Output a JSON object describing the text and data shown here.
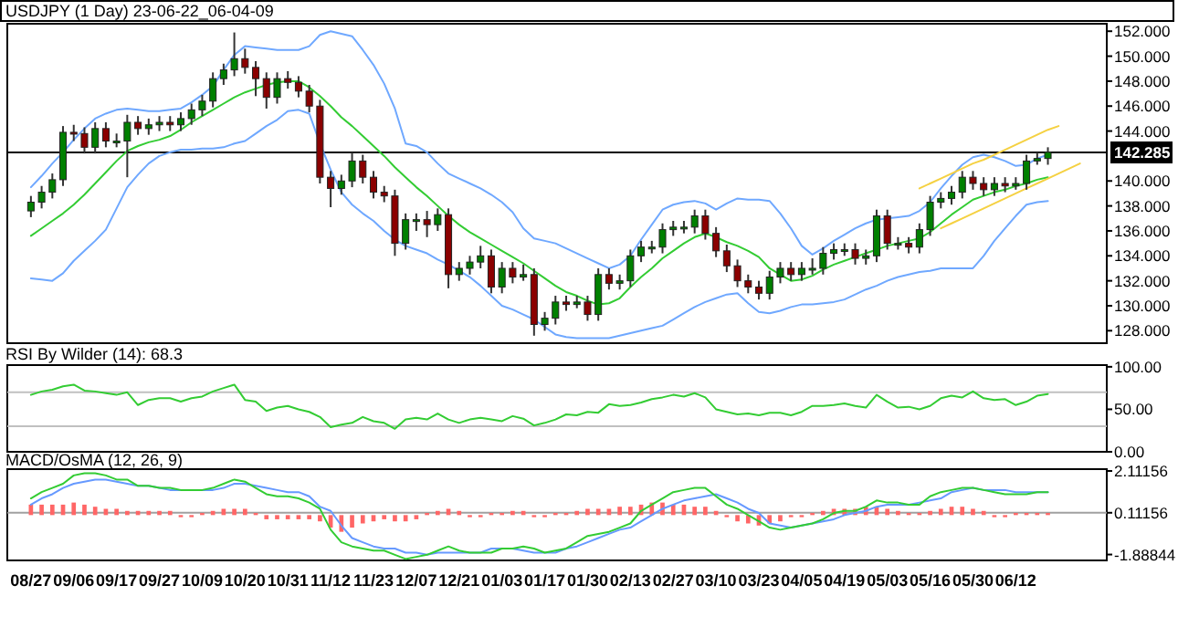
{
  "chart_data": [
    {
      "type": "candlestick",
      "title": "USDJPY (1 Day) 23-06-22_06-04-09",
      "series": [
        {
          "type": "line",
          "color": "#6fa8ff",
          "values": [
            139.5,
            140.4,
            141.4,
            142.3,
            143.3,
            144.2,
            145.0,
            145.4,
            145.7,
            145.8,
            145.7,
            145.6,
            145.6,
            145.7,
            145.8,
            146.3,
            146.9,
            147.6,
            148.9,
            150.1,
            150.8,
            150.7,
            150.6,
            150.5,
            150.5,
            150.5,
            150.8,
            151.7,
            152.0,
            151.8,
            151.6,
            150.5,
            149.3,
            147.8,
            145.8,
            143.0,
            142.8,
            142.3,
            141.4,
            140.6,
            140.2,
            139.8,
            139.4,
            138.9,
            138.3,
            137.5,
            136.2,
            135.4,
            135.2,
            135.0,
            134.6,
            134.2,
            133.8,
            133.4,
            133.0,
            133.3,
            134.0,
            135.3,
            136.5,
            137.7,
            138.1,
            138.3,
            138.4,
            138.2,
            137.7,
            138.2,
            138.6,
            138.5,
            138.5,
            138.4,
            137.4,
            136.2,
            134.8,
            134.1,
            134.6,
            135.2,
            135.7,
            136.2,
            136.6,
            136.9,
            137.0,
            137.1,
            137.2,
            137.6,
            138.3,
            139.4,
            140.4,
            141.3,
            141.9,
            142.1,
            141.9,
            141.6,
            141.2,
            141.3,
            141.8,
            142.1,
            null,
            null,
            null,
            null,
            null
          ]
        },
        {
          "type": "line",
          "color": "#33cc33",
          "values": [
            135.6,
            136.2,
            136.8,
            137.4,
            138.1,
            138.9,
            139.8,
            140.7,
            141.6,
            142.4,
            142.8,
            143.1,
            143.3,
            143.6,
            144.1,
            144.7,
            145.2,
            145.7,
            146.2,
            146.7,
            147.1,
            147.4,
            147.7,
            147.9,
            148.0,
            148.0,
            147.5,
            146.8,
            146.0,
            145.1,
            144.4,
            143.6,
            142.8,
            142.0,
            141.1,
            140.3,
            139.5,
            138.8,
            138.0,
            137.2,
            136.5,
            135.9,
            135.4,
            134.9,
            134.4,
            133.9,
            133.4,
            132.8,
            132.2,
            131.6,
            131.1,
            130.8,
            130.4,
            130.1,
            130.2,
            130.6,
            131.5,
            132.3,
            133.0,
            133.8,
            134.4,
            135.0,
            135.5,
            135.8,
            135.5,
            135.1,
            134.8,
            134.4,
            133.9,
            133.0,
            132.5,
            132.0,
            132.1,
            132.4,
            132.9,
            133.3,
            133.6,
            133.9,
            134.2,
            134.5,
            134.8,
            135.0,
            135.2,
            135.4,
            135.9,
            136.6,
            137.3,
            137.9,
            138.5,
            138.8,
            139.1,
            139.3,
            139.6,
            139.8,
            140.1,
            140.3,
            null,
            null,
            null,
            null,
            null
          ]
        },
        {
          "type": "line",
          "color": "#6fa8ff",
          "values": [
            132.2,
            132.1,
            132.0,
            132.6,
            133.6,
            134.4,
            135.2,
            136.1,
            137.8,
            139.5,
            140.5,
            141.4,
            142.0,
            142.3,
            142.5,
            142.5,
            142.6,
            142.6,
            142.7,
            143.0,
            143.2,
            143.8,
            144.4,
            144.9,
            145.6,
            145.7,
            145.4,
            143.0,
            140.9,
            139.1,
            138.1,
            137.4,
            136.8,
            136.0,
            135.3,
            134.8,
            134.5,
            134.2,
            133.7,
            133.3,
            132.8,
            132.3,
            131.6,
            130.8,
            130.0,
            129.7,
            129.3,
            128.9,
            128.3,
            127.7,
            127.5,
            127.4,
            127.4,
            127.4,
            127.4,
            127.6,
            127.8,
            128.0,
            128.2,
            128.4,
            128.9,
            129.4,
            129.9,
            130.3,
            130.6,
            130.9,
            131.0,
            130.2,
            129.5,
            129.4,
            129.6,
            129.9,
            130.1,
            130.1,
            130.2,
            130.3,
            130.5,
            130.9,
            131.3,
            131.6,
            132.0,
            132.3,
            132.5,
            132.7,
            132.8,
            133.0,
            133.0,
            133.0,
            133.0,
            134.0,
            135.2,
            136.2,
            137.2,
            138.1,
            138.3,
            138.4,
            null,
            null,
            null,
            null,
            null
          ]
        },
        {
          "type": "line",
          "color": "#f5d142",
          "values": [
            null,
            null,
            null,
            null,
            null,
            null,
            null,
            null,
            null,
            null,
            null,
            null,
            null,
            null,
            null,
            null,
            null,
            null,
            null,
            null,
            null,
            null,
            null,
            null,
            null,
            null,
            null,
            null,
            null,
            null,
            null,
            null,
            null,
            null,
            null,
            null,
            null,
            null,
            null,
            null,
            null,
            null,
            null,
            null,
            null,
            null,
            null,
            null,
            null,
            null,
            null,
            null,
            null,
            null,
            null,
            null,
            null,
            null,
            null,
            null,
            null,
            null,
            null,
            null,
            null,
            null,
            null,
            null,
            null,
            null,
            null,
            null,
            null,
            null,
            null,
            null,
            null,
            null,
            null,
            null,
            null,
            null,
            null,
            139.4,
            139.8,
            140.2,
            140.6,
            141.0,
            141.4,
            141.7,
            142.1,
            142.5,
            142.9,
            143.3,
            143.7,
            144.1,
            144.4,
            null,
            null,
            null,
            null
          ]
        },
        {
          "type": "line",
          "color": "#f5d142",
          "values": [
            null,
            null,
            null,
            null,
            null,
            null,
            null,
            null,
            null,
            null,
            null,
            null,
            null,
            null,
            null,
            null,
            null,
            null,
            null,
            null,
            null,
            null,
            null,
            null,
            null,
            null,
            null,
            null,
            null,
            null,
            null,
            null,
            null,
            null,
            null,
            null,
            null,
            null,
            null,
            null,
            null,
            null,
            null,
            null,
            null,
            null,
            null,
            null,
            null,
            null,
            null,
            null,
            null,
            null,
            null,
            null,
            null,
            null,
            null,
            null,
            null,
            null,
            null,
            null,
            null,
            null,
            null,
            null,
            null,
            null,
            null,
            null,
            null,
            null,
            null,
            null,
            null,
            null,
            null,
            null,
            null,
            null,
            null,
            null,
            null,
            136.2,
            136.6,
            137.0,
            137.4,
            137.8,
            138.2,
            138.6,
            139.0,
            139.4,
            139.8,
            140.2,
            140.6,
            141.0,
            141.4,
            null,
            null
          ]
        },
        {
          "ohlc": [
            [
              137.6,
              138.8,
              137.1,
              138.3
            ],
            [
              138.3,
              139.6,
              137.8,
              139.1
            ],
            [
              139.1,
              140.6,
              138.6,
              140.1
            ],
            [
              140.1,
              144.4,
              139.6,
              143.9
            ],
            [
              143.9,
              144.5,
              143.2,
              143.8
            ],
            [
              143.8,
              144.3,
              142.2,
              142.7
            ],
            [
              142.7,
              144.7,
              142.2,
              144.2
            ],
            [
              144.2,
              144.7,
              142.7,
              143.2
            ],
            [
              143.2,
              143.8,
              142.7,
              143.2
            ],
            [
              143.2,
              145.3,
              140.3,
              144.7
            ],
            [
              144.7,
              145.2,
              143.7,
              144.2
            ],
            [
              144.2,
              145.0,
              143.7,
              144.5
            ],
            [
              144.5,
              145.2,
              144.0,
              144.7
            ],
            [
              144.7,
              145.2,
              144.0,
              144.5
            ],
            [
              144.5,
              145.5,
              144.0,
              145.0
            ],
            [
              145.0,
              146.2,
              144.5,
              145.7
            ],
            [
              145.7,
              146.9,
              145.2,
              146.4
            ],
            [
              146.4,
              148.7,
              145.9,
              148.2
            ],
            [
              148.2,
              149.4,
              147.7,
              148.9
            ],
            [
              148.9,
              151.9,
              148.4,
              149.8
            ],
            [
              149.8,
              150.6,
              148.6,
              149.1
            ],
            [
              149.1,
              149.6,
              146.8,
              148.2
            ],
            [
              148.2,
              148.7,
              145.8,
              146.7
            ],
            [
              146.7,
              148.7,
              146.2,
              148.2
            ],
            [
              148.2,
              148.8,
              147.4,
              147.9
            ],
            [
              147.9,
              148.4,
              146.7,
              147.2
            ],
            [
              147.2,
              147.7,
              145.5,
              146.0
            ],
            [
              146.0,
              146.5,
              139.8,
              140.3
            ],
            [
              140.3,
              140.8,
              137.9,
              139.4
            ],
            [
              139.4,
              140.5,
              138.9,
              140.0
            ],
            [
              140.0,
              142.3,
              139.5,
              141.6
            ],
            [
              141.6,
              142.1,
              139.8,
              140.3
            ],
            [
              140.3,
              140.8,
              138.6,
              139.1
            ],
            [
              139.1,
              139.6,
              138.3,
              138.8
            ],
            [
              138.8,
              139.3,
              134.0,
              135.0
            ],
            [
              135.0,
              137.4,
              134.5,
              136.9
            ],
            [
              136.9,
              137.4,
              136.0,
              136.9
            ],
            [
              136.9,
              137.6,
              135.5,
              136.5
            ],
            [
              136.5,
              137.8,
              136.0,
              137.3
            ],
            [
              137.3,
              137.8,
              131.4,
              132.5
            ],
            [
              132.5,
              133.5,
              132.0,
              133.0
            ],
            [
              133.0,
              134.0,
              132.5,
              133.5
            ],
            [
              133.5,
              134.8,
              133.0,
              134.0
            ],
            [
              134.0,
              134.5,
              131.0,
              131.5
            ],
            [
              131.5,
              133.5,
              131.0,
              133.0
            ],
            [
              133.0,
              133.5,
              131.8,
              132.3
            ],
            [
              132.3,
              133.3,
              132.0,
              132.5
            ],
            [
              132.5,
              133.0,
              127.6,
              128.5
            ],
            [
              128.5,
              129.5,
              128.0,
              129.0
            ],
            [
              129.0,
              130.8,
              128.5,
              130.3
            ],
            [
              130.3,
              130.8,
              129.6,
              130.1
            ],
            [
              130.1,
              130.8,
              129.8,
              130.3
            ],
            [
              130.3,
              130.8,
              128.8,
              129.3
            ],
            [
              129.3,
              133.0,
              128.8,
              132.5
            ],
            [
              132.5,
              133.0,
              131.3,
              131.8
            ],
            [
              131.8,
              132.5,
              131.3,
              132.0
            ],
            [
              132.0,
              134.5,
              131.5,
              134.0
            ],
            [
              134.0,
              135.2,
              133.5,
              134.7
            ],
            [
              134.7,
              135.2,
              134.2,
              134.7
            ],
            [
              134.7,
              136.6,
              134.2,
              136.1
            ],
            [
              136.1,
              136.8,
              135.6,
              136.3
            ],
            [
              136.3,
              136.8,
              135.8,
              136.3
            ],
            [
              136.3,
              137.7,
              135.8,
              137.2
            ],
            [
              137.2,
              137.7,
              135.3,
              135.8
            ],
            [
              135.8,
              136.3,
              133.9,
              134.4
            ],
            [
              134.4,
              134.9,
              132.7,
              133.2
            ],
            [
              133.2,
              133.7,
              131.5,
              132.0
            ],
            [
              132.0,
              132.5,
              131.0,
              131.5
            ],
            [
              131.5,
              132.0,
              130.5,
              131.0
            ],
            [
              131.0,
              132.8,
              130.5,
              132.3
            ],
            [
              132.3,
              133.5,
              131.8,
              133.0
            ],
            [
              133.0,
              133.5,
              132.0,
              132.5
            ],
            [
              132.5,
              133.5,
              132.0,
              133.0
            ],
            [
              133.0,
              133.8,
              132.5,
              133.0
            ],
            [
              133.0,
              134.7,
              132.5,
              134.2
            ],
            [
              134.2,
              135.0,
              133.7,
              134.5
            ],
            [
              134.5,
              135.0,
              134.0,
              134.5
            ],
            [
              134.5,
              135.0,
              133.3,
              133.8
            ],
            [
              133.8,
              134.5,
              133.3,
              134.0
            ],
            [
              134.0,
              137.7,
              133.5,
              137.2
            ],
            [
              137.2,
              137.7,
              134.5,
              135.0
            ],
            [
              135.0,
              135.5,
              134.5,
              135.0
            ],
            [
              135.0,
              135.5,
              134.2,
              134.7
            ],
            [
              134.7,
              136.6,
              134.2,
              136.1
            ],
            [
              136.1,
              138.8,
              135.6,
              138.3
            ],
            [
              138.3,
              139.1,
              137.8,
              138.6
            ],
            [
              138.6,
              139.6,
              138.1,
              139.1
            ],
            [
              139.1,
              140.8,
              138.6,
              140.3
            ],
            [
              140.3,
              140.8,
              139.3,
              139.8
            ],
            [
              139.8,
              140.3,
              138.8,
              139.3
            ],
            [
              139.3,
              140.3,
              138.8,
              139.8
            ],
            [
              139.8,
              140.3,
              139.1,
              139.6
            ],
            [
              139.6,
              140.3,
              139.3,
              139.8
            ],
            [
              139.8,
              142.1,
              139.3,
              141.6
            ],
            [
              141.6,
              142.3,
              141.3,
              141.8
            ],
            [
              141.8,
              142.7,
              141.3,
              142.3
            ],
            null,
            null,
            null,
            null,
            null
          ]
        }
      ],
      "ylim": [
        127.0,
        152.6
      ],
      "yticks": [
        {
          "value": 128,
          "label": "128.000"
        },
        {
          "value": 130,
          "label": "130.000"
        },
        {
          "value": 132,
          "label": "132.000"
        },
        {
          "value": 134,
          "label": "134.000"
        },
        {
          "value": 136,
          "label": "136.000"
        },
        {
          "value": 138,
          "label": "138.000"
        },
        {
          "value": 140,
          "label": "140.000"
        },
        {
          "value": 144,
          "label": "144.000"
        },
        {
          "value": 146,
          "label": "146.000"
        },
        {
          "value": 148,
          "label": "148.000"
        },
        {
          "value": 150,
          "label": "150.000"
        },
        {
          "value": 152,
          "label": "152.000"
        }
      ],
      "ref_lines": [
        {
          "axis": "y",
          "value": 142.285,
          "label": "142.285",
          "color": "#000000"
        }
      ],
      "tick_labels": "y"
    },
    {
      "type": "line",
      "title": "RSI By Wilder (14): 68.3",
      "series": [
        {
          "color": "#33cc33",
          "values": [
            67,
            71,
            73,
            77,
            79,
            72,
            71,
            69,
            67,
            70,
            55,
            61,
            63,
            63,
            59,
            63,
            65,
            71,
            75,
            79,
            61,
            59,
            48,
            52,
            54,
            50,
            47,
            41,
            29,
            32,
            34,
            41,
            36,
            34,
            27,
            38,
            40,
            38,
            45,
            38,
            34,
            38,
            40,
            38,
            36,
            42,
            39,
            31,
            34,
            38,
            44,
            43,
            47,
            46,
            56,
            54,
            55,
            58,
            62,
            64,
            67,
            65,
            69,
            64,
            50,
            47,
            44,
            45,
            43,
            46,
            46,
            43,
            47,
            54,
            54,
            55,
            57,
            54,
            52,
            67,
            59,
            52,
            53,
            50,
            54,
            63,
            66,
            64,
            71,
            63,
            61,
            62,
            55,
            59,
            66,
            68,
            null,
            null,
            null,
            null,
            null
          ]
        }
      ],
      "ylim": [
        0,
        102
      ],
      "yticks": [
        {
          "value": 0,
          "label": "0.00"
        },
        {
          "value": 50,
          "label": "50.00"
        },
        {
          "value": 100,
          "label": "100.00"
        }
      ],
      "ref_lines": [
        {
          "axis": "y",
          "value": 30,
          "color": "#c0c0c0"
        },
        {
          "axis": "y",
          "value": 70,
          "color": "#c0c0c0"
        }
      ],
      "tick_labels": "y"
    },
    {
      "type": "line",
      "title": "MACD/OsMA (12, 26, 9)",
      "categories": [
        "08/27",
        null,
        null,
        null,
        "09/06",
        null,
        null,
        null,
        "09/17",
        null,
        null,
        null,
        "09/27",
        null,
        null,
        null,
        "10/09",
        null,
        null,
        null,
        "10/20",
        null,
        null,
        null,
        "10/31",
        null,
        null,
        null,
        "11/12",
        null,
        null,
        null,
        "11/23",
        null,
        null,
        null,
        "12/07",
        null,
        null,
        null,
        "12/21",
        null,
        null,
        null,
        "01/03",
        null,
        null,
        null,
        "01/17",
        null,
        null,
        null,
        "01/30",
        null,
        null,
        null,
        "02/13",
        null,
        null,
        null,
        "02/27",
        null,
        null,
        null,
        "03/10",
        null,
        null,
        null,
        "03/23",
        null,
        null,
        null,
        "04/05",
        null,
        null,
        null,
        "04/19",
        null,
        null,
        null,
        "05/03",
        null,
        null,
        null,
        "05/16",
        null,
        null,
        null,
        "05/30",
        null,
        null,
        null,
        "06/12",
        null,
        null,
        null,
        null,
        null,
        null,
        null,
        null
      ],
      "series": [
        {
          "type": "bar",
          "color": "#ff6666",
          "values": [
            0.5,
            0.5,
            0.5,
            0.5,
            0.6,
            0.5,
            0.4,
            0.3,
            0.3,
            0.2,
            0.2,
            0.2,
            0.2,
            0.2,
            -0.1,
            -0.1,
            0.1,
            0.2,
            0.3,
            0.3,
            0.3,
            0.1,
            -0.2,
            -0.2,
            -0.2,
            -0.2,
            -0.2,
            -0.3,
            -0.6,
            -0.8,
            -0.6,
            -0.4,
            -0.3,
            -0.2,
            -0.3,
            -0.3,
            -0.2,
            0.1,
            0.2,
            0.3,
            0.2,
            -0.1,
            -0.1,
            0.1,
            0.1,
            0.2,
            0.2,
            -0.1,
            -0.1,
            0.1,
            0.1,
            0.2,
            0.3,
            0.3,
            0.3,
            0.4,
            0.4,
            0.5,
            0.6,
            0.6,
            0.5,
            0.5,
            0.4,
            0.4,
            0.2,
            -0.1,
            -0.3,
            -0.4,
            -0.5,
            -0.4,
            -0.3,
            -0.1,
            -0.1,
            0.1,
            0.2,
            0.3,
            0.3,
            0.3,
            0.4,
            0.4,
            0.3,
            0.2,
            0.1,
            0.1,
            0.2,
            0.3,
            0.4,
            0.4,
            0.3,
            0.2,
            -0.1,
            -0.1,
            0.1,
            0.1,
            0.1,
            0.1,
            null,
            null,
            null,
            null,
            null
          ]
        },
        {
          "color": "#6699ff",
          "values": [
            0.5,
            0.8,
            1.0,
            1.3,
            1.5,
            1.6,
            1.7,
            1.7,
            1.6,
            1.5,
            1.4,
            1.4,
            1.3,
            1.2,
            1.2,
            1.2,
            1.2,
            1.2,
            1.3,
            1.5,
            1.5,
            1.4,
            1.3,
            1.2,
            1.1,
            1.1,
            0.9,
            0.4,
            0.2,
            -0.5,
            -1.1,
            -1.3,
            -1.5,
            -1.6,
            -1.6,
            -1.8,
            -1.8,
            -1.9,
            -1.8,
            -1.8,
            -1.8,
            -1.8,
            -1.8,
            -1.6,
            -1.6,
            -1.6,
            -1.7,
            -1.8,
            -1.8,
            -1.8,
            -1.6,
            -1.5,
            -1.3,
            -1.1,
            -0.9,
            -0.7,
            -0.6,
            -0.3,
            0.0,
            0.3,
            0.5,
            0.7,
            0.8,
            0.9,
            1.0,
            0.8,
            0.6,
            0.3,
            0.1,
            -0.4,
            -0.5,
            -0.6,
            -0.5,
            -0.4,
            -0.3,
            -0.2,
            0.0,
            0.1,
            0.2,
            0.4,
            0.5,
            0.5,
            0.5,
            0.6,
            0.7,
            0.8,
            1.1,
            1.2,
            1.3,
            1.2,
            1.2,
            1.2,
            1.1,
            1.1,
            1.1,
            1.1,
            null,
            null,
            null,
            null,
            null
          ]
        },
        {
          "color": "#33cc33",
          "values": [
            0.8,
            1.1,
            1.3,
            1.5,
            1.9,
            2.0,
            2.0,
            1.9,
            1.7,
            1.7,
            1.4,
            1.4,
            1.3,
            1.3,
            1.2,
            1.2,
            1.2,
            1.3,
            1.5,
            1.7,
            1.6,
            1.3,
            1.0,
            0.9,
            0.9,
            0.8,
            0.6,
            0.3,
            -0.7,
            -1.3,
            -1.5,
            -1.6,
            -1.7,
            -1.7,
            -1.9,
            -2.1,
            -2.0,
            -1.9,
            -1.7,
            -1.5,
            -1.7,
            -1.8,
            -1.8,
            -1.8,
            -1.6,
            -1.6,
            -1.5,
            -1.6,
            -1.8,
            -1.7,
            -1.6,
            -1.3,
            -1.0,
            -0.9,
            -0.8,
            -0.6,
            -0.4,
            0.2,
            0.5,
            0.8,
            1.1,
            1.2,
            1.3,
            1.3,
            0.9,
            0.5,
            0.3,
            0.0,
            -0.3,
            -0.6,
            -0.7,
            -0.6,
            -0.5,
            -0.4,
            -0.2,
            0.1,
            0.2,
            0.2,
            0.4,
            0.7,
            0.6,
            0.6,
            0.5,
            0.5,
            0.9,
            1.1,
            1.2,
            1.3,
            1.3,
            1.2,
            1.1,
            1.0,
            1.0,
            1.0,
            1.1,
            1.1,
            null,
            null,
            null,
            null,
            null
          ]
        }
      ],
      "ylim": [
        -2.17,
        2.2
      ],
      "yticks": [
        2.11156,
        0.11156,
        -1.88844
      ],
      "ref_lines": [
        {
          "axis": "y",
          "value": 0.11156,
          "color": "#a0a0a0"
        }
      ]
    }
  ]
}
